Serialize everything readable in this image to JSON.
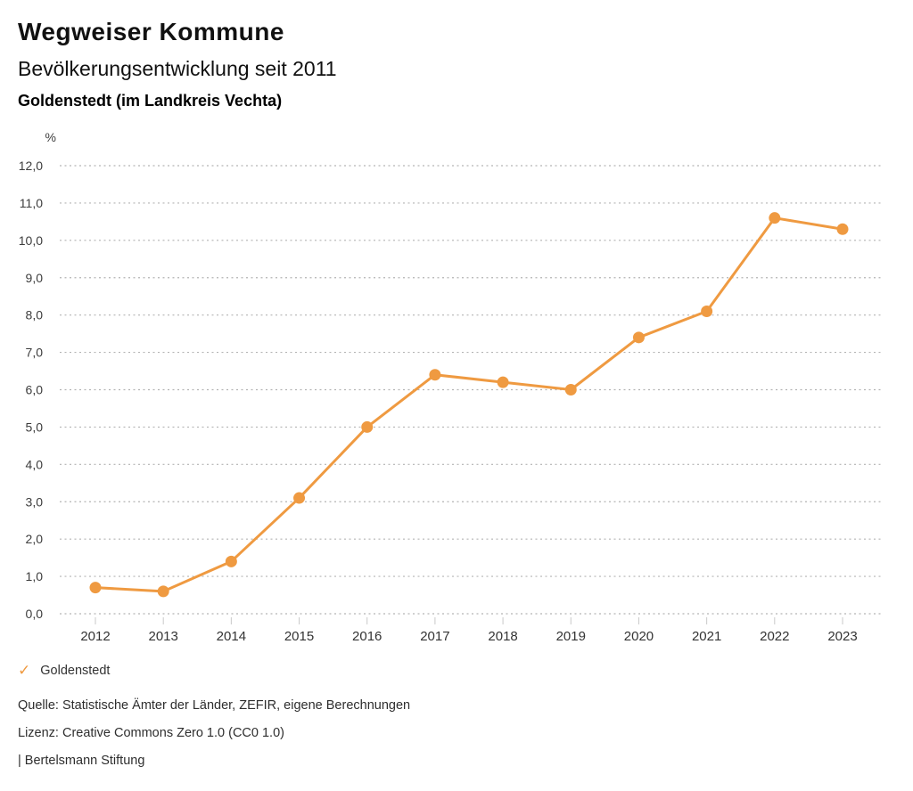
{
  "header": {
    "title": "Wegweiser Kommune",
    "subtitle": "Bevölkerungsentwicklung seit 2011",
    "region": "Goldenstedt (im Landkreis Vechta)"
  },
  "chart_data": {
    "type": "line",
    "title": "Bevölkerungsentwicklung seit 2011",
    "ylabel": "%",
    "xlabel": "",
    "categories": [
      "2012",
      "2013",
      "2014",
      "2015",
      "2016",
      "2017",
      "2018",
      "2019",
      "2020",
      "2021",
      "2022",
      "2023"
    ],
    "series": [
      {
        "name": "Goldenstedt",
        "color": "#EF9A41",
        "values": [
          0.7,
          0.6,
          1.4,
          3.1,
          5.0,
          6.4,
          6.2,
          6.0,
          7.4,
          8.1,
          10.6,
          10.3
        ]
      }
    ],
    "ylim": [
      0,
      12
    ],
    "ytick_step": 1,
    "ytick_labels": [
      "0,0",
      "1,0",
      "2,0",
      "3,0",
      "4,0",
      "5,0",
      "6,0",
      "7,0",
      "8,0",
      "9,0",
      "10,0",
      "11,0",
      "12,0"
    ],
    "grid": "horizontal-dotted",
    "legend_position": "bottom-left",
    "colors": {
      "gridline": "#b3b3b3",
      "tick": "#c9c9c9",
      "y_label": "#3d3d3d",
      "x_label": "#333333"
    }
  },
  "legend": {
    "marker": "check-icon",
    "label": "Goldenstedt",
    "color": "#EF9A41"
  },
  "footer": {
    "source": "Quelle: Statistische Ämter der Länder, ZEFIR, eigene Berechnungen",
    "license": "Lizenz: Creative Commons Zero 1.0 (CC0 1.0)",
    "attribution": "| Bertelsmann Stiftung"
  }
}
